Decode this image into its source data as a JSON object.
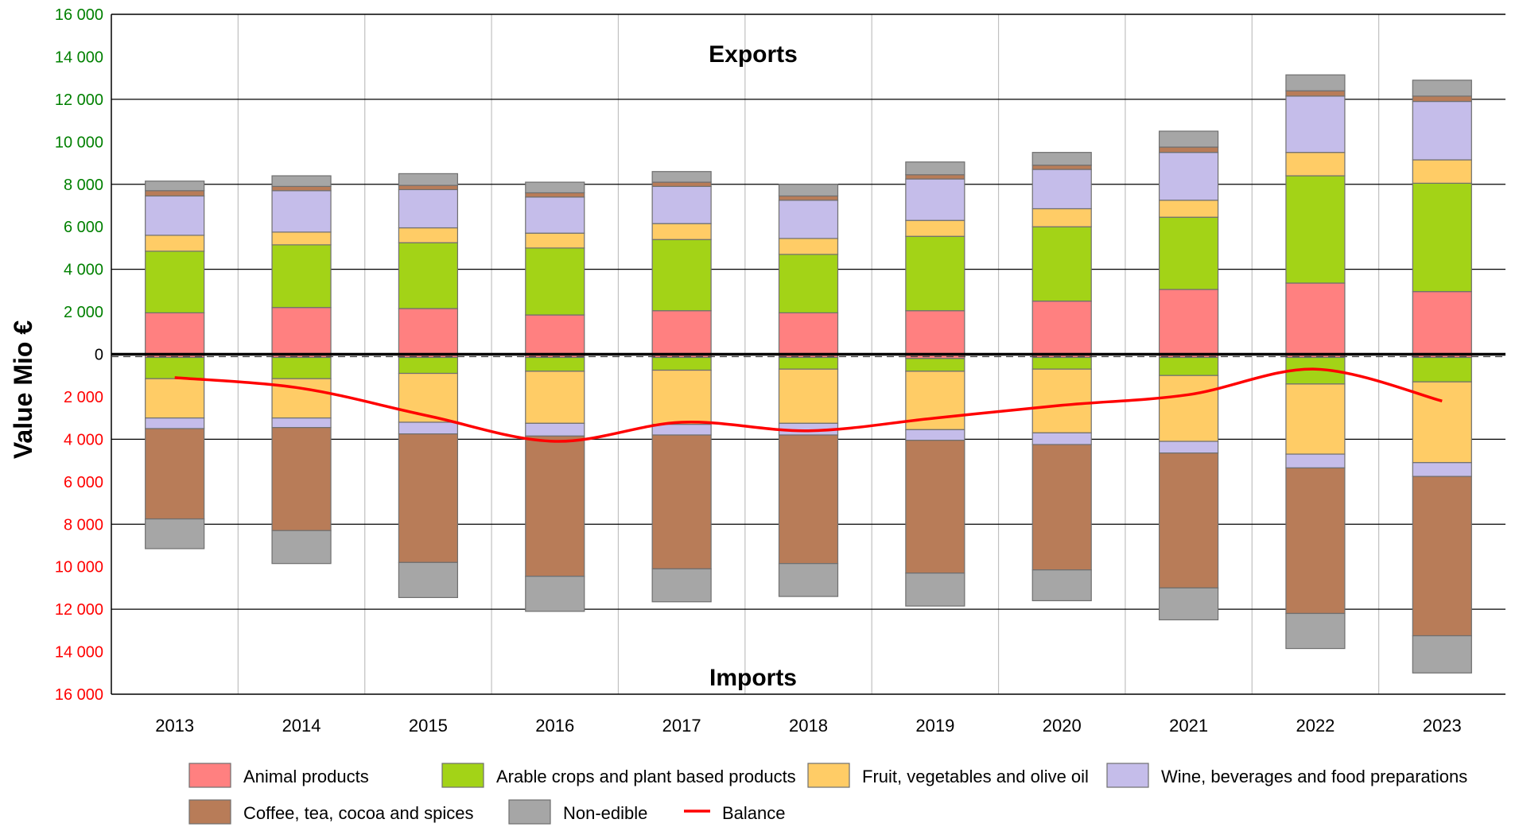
{
  "chart_data": {
    "type": "bar",
    "stacked": true,
    "ylabel": "Value Mio €",
    "annotations": {
      "top": "Exports",
      "bottom": "Imports"
    },
    "ylim": [
      -16000,
      16000
    ],
    "yticks": [
      16000,
      14000,
      12000,
      10000,
      8000,
      6000,
      4000,
      2000,
      0,
      -2000,
      -4000,
      -6000,
      -8000,
      -10000,
      -12000,
      -14000,
      -16000
    ],
    "ytick_labels": [
      "16 000",
      "14 000",
      "12 000",
      "10 000",
      "8 000",
      "6 000",
      "4 000",
      "2 000",
      "0",
      "2 000",
      "4 000",
      "6 000",
      "8 000",
      "10 000",
      "12 000",
      "14 000",
      "16 000"
    ],
    "tick_colors": {
      "positive": "#008000",
      "zero": "#000000",
      "negative": "#ff0000"
    },
    "categories": [
      "2013",
      "2014",
      "2015",
      "2016",
      "2017",
      "2018",
      "2019",
      "2020",
      "2021",
      "2022",
      "2023"
    ],
    "series": [
      {
        "name": "Animal products",
        "color": "#ff8080",
        "exports": [
          1950,
          2200,
          2150,
          1850,
          2050,
          1950,
          2050,
          2500,
          3050,
          3350,
          2950
        ],
        "imports": [
          -150,
          -150,
          -150,
          -150,
          -150,
          -150,
          -200,
          -150,
          -150,
          -150,
          -150
        ]
      },
      {
        "name": "Arable crops and plant based products",
        "color": "#a3d317",
        "exports": [
          2900,
          2950,
          3100,
          3150,
          3350,
          2750,
          3500,
          3500,
          3400,
          5050,
          5100
        ],
        "imports": [
          -1000,
          -1000,
          -750,
          -650,
          -600,
          -550,
          -600,
          -550,
          -850,
          -1250,
          -1150
        ]
      },
      {
        "name": "Fruit, vegetables and olive oil",
        "color": "#ffcc66",
        "exports": [
          750,
          600,
          700,
          700,
          750,
          750,
          750,
          850,
          800,
          1100,
          1100
        ],
        "imports": [
          -1850,
          -1850,
          -2300,
          -2450,
          -2550,
          -2550,
          -2750,
          -3000,
          -3100,
          -3300,
          -3800
        ]
      },
      {
        "name": "Wine, beverages and food preparations",
        "color": "#c5bdea",
        "exports": [
          1850,
          1950,
          1800,
          1700,
          1750,
          1800,
          1950,
          1850,
          2250,
          2650,
          2750
        ],
        "imports": [
          -500,
          -450,
          -550,
          -600,
          -500,
          -550,
          -500,
          -550,
          -550,
          -650,
          -650
        ]
      },
      {
        "name": "Coffee, tea, cocoa and spices",
        "color": "#b87c58",
        "exports": [
          250,
          200,
          200,
          200,
          200,
          200,
          200,
          200,
          250,
          250,
          250
        ],
        "imports": [
          -4250,
          -4850,
          -6050,
          -6600,
          -6300,
          -6050,
          -6250,
          -5900,
          -6350,
          -6850,
          -7500
        ]
      },
      {
        "name": "Non-edible",
        "color": "#a6a6a6",
        "exports": [
          450,
          500,
          550,
          500,
          500,
          550,
          600,
          600,
          750,
          750,
          750
        ],
        "imports": [
          -1400,
          -1550,
          -1650,
          -1650,
          -1550,
          -1550,
          -1550,
          -1450,
          -1500,
          -1650,
          -1750
        ]
      }
    ],
    "balance": {
      "name": "Balance",
      "color": "#ff0000",
      "values": [
        -1100,
        -1600,
        -2900,
        -4100,
        -3200,
        -3600,
        -3000,
        -2400,
        -1900,
        -700,
        -2200
      ]
    },
    "grid": {
      "horizontal": true,
      "vertical": true
    },
    "legend": {
      "position": "bottom"
    }
  }
}
